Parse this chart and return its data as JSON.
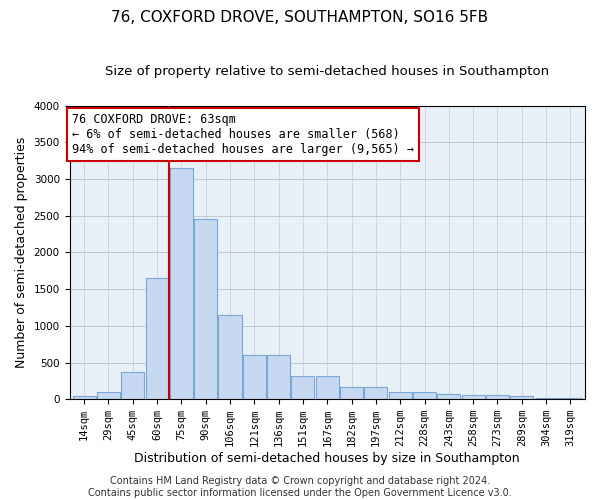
{
  "title": "76, COXFORD DROVE, SOUTHAMPTON, SO16 5FB",
  "subtitle": "Size of property relative to semi-detached houses in Southampton",
  "xlabel": "Distribution of semi-detached houses by size in Southampton",
  "ylabel": "Number of semi-detached properties",
  "categories": [
    "14sqm",
    "29sqm",
    "45sqm",
    "60sqm",
    "75sqm",
    "90sqm",
    "106sqm",
    "121sqm",
    "136sqm",
    "151sqm",
    "167sqm",
    "182sqm",
    "197sqm",
    "212sqm",
    "228sqm",
    "243sqm",
    "258sqm",
    "273sqm",
    "289sqm",
    "304sqm",
    "319sqm"
  ],
  "bar_heights": [
    50,
    100,
    370,
    1650,
    3150,
    2450,
    1150,
    600,
    600,
    320,
    320,
    160,
    160,
    100,
    100,
    75,
    60,
    60,
    40,
    20,
    15
  ],
  "bar_color": "#c6d9f0",
  "bar_edge_color": "#7aa8d2",
  "vline_color": "#cc0000",
  "annotation_text": "76 COXFORD DROVE: 63sqm\n← 6% of semi-detached houses are smaller (568)\n94% of semi-detached houses are larger (9,565) →",
  "annotation_box_color": "#ffffff",
  "annotation_box_edge": "#cc0000",
  "ylim": [
    0,
    4000
  ],
  "yticks": [
    0,
    500,
    1000,
    1500,
    2000,
    2500,
    3000,
    3500,
    4000
  ],
  "footer1": "Contains HM Land Registry data © Crown copyright and database right 2024.",
  "footer2": "Contains public sector information licensed under the Open Government Licence v3.0.",
  "bg_color": "#ffffff",
  "plot_bg_color": "#e8f0f8",
  "grid_color": "#c0c8d8",
  "title_fontsize": 11,
  "subtitle_fontsize": 9.5,
  "axis_label_fontsize": 9,
  "tick_fontsize": 7.5,
  "annotation_fontsize": 8.5,
  "footer_fontsize": 7
}
